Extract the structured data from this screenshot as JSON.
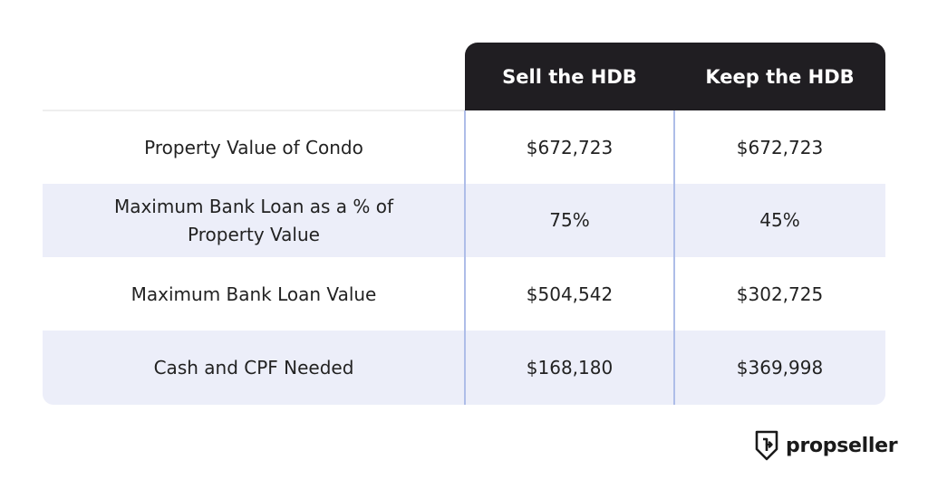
{
  "table": {
    "headers": [
      "Sell the HDB",
      "Keep the HDB"
    ],
    "rows": [
      {
        "label": "Property Value of Condo",
        "sell": "$672,723",
        "keep": "$672,723"
      },
      {
        "label": "Maximum Bank Loan as a % of Property Value",
        "sell": "75%",
        "keep": "45%"
      },
      {
        "label": "Maximum Bank Loan Value",
        "sell": "$504,542",
        "keep": "$302,725"
      },
      {
        "label": "Cash and CPF Needed",
        "sell": "$168,180",
        "keep": "$369,998"
      }
    ]
  },
  "brand": {
    "name": "propseller",
    "logo_icon": "shield-arrow-icon"
  },
  "colors": {
    "header_bg": "#201e22",
    "alt_row_bg": "#eceef9",
    "divider": "#aebde8"
  }
}
